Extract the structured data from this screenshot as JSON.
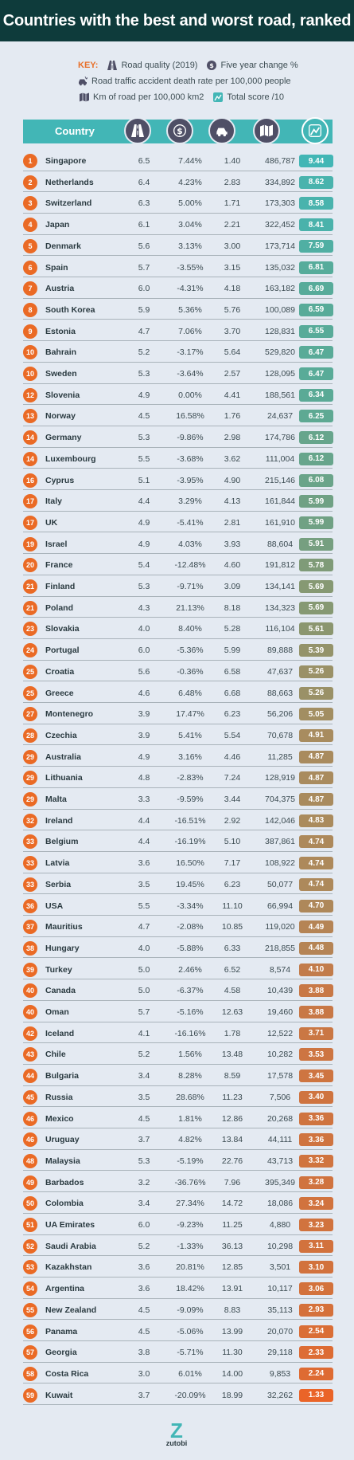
{
  "title": "Countries with the best and worst road, ranked",
  "key": {
    "label": "KEY:",
    "items": [
      {
        "icon": "road-icon",
        "text": "Road quality (2019)"
      },
      {
        "icon": "dollar-icon",
        "text": "Five year change %"
      },
      {
        "icon": "car-crash-icon",
        "text": "Road traffic accident death rate per 100,000 people"
      },
      {
        "icon": "map-icon",
        "text": "Km of road per 100,000 km2"
      },
      {
        "icon": "score-icon",
        "text": "Total score /10"
      }
    ]
  },
  "table_header": {
    "country": "Country"
  },
  "logo": {
    "text": "zutobi"
  },
  "colors": {
    "header_bg": "#0e3b3b",
    "teal": "#42b6b6",
    "rank_orange": "#ea6a25",
    "icon_circle": "#4f4f66"
  },
  "chart_data": {
    "type": "table",
    "title": "Countries with the best and worst road, ranked",
    "columns": [
      "Rank",
      "Country",
      "Road quality (2019)",
      "Five year change %",
      "Road traffic accident death rate per 100,000 people",
      "Km of road per 100,000 km2",
      "Total score /10"
    ],
    "rows": [
      [
        "1",
        "Singapore",
        "6.5",
        "7.44%",
        "1.40",
        "486,787",
        "9.44"
      ],
      [
        "2",
        "Netherlands",
        "6.4",
        "4.23%",
        "2.83",
        "334,892",
        "8.62"
      ],
      [
        "3",
        "Switzerland",
        "6.3",
        "5.00%",
        "1.71",
        "173,303",
        "8.58"
      ],
      [
        "4",
        "Japan",
        "6.1",
        "3.04%",
        "2.21",
        "322,452",
        "8.41"
      ],
      [
        "5",
        "Denmark",
        "5.6",
        "3.13%",
        "3.00",
        "173,714",
        "7.59"
      ],
      [
        "6",
        "Spain",
        "5.7",
        "-3.55%",
        "3.15",
        "135,032",
        "6.81"
      ],
      [
        "7",
        "Austria",
        "6.0",
        "-4.31%",
        "4.18",
        "163,182",
        "6.69"
      ],
      [
        "8",
        "South Korea",
        "5.9",
        "5.36%",
        "5.76",
        "100,089",
        "6.59"
      ],
      [
        "9",
        "Estonia",
        "4.7",
        "7.06%",
        "3.70",
        "128,831",
        "6.55"
      ],
      [
        "10",
        "Bahrain",
        "5.2",
        "-3.17%",
        "5.64",
        "529,820",
        "6.47"
      ],
      [
        "10",
        "Sweden",
        "5.3",
        "-3.64%",
        "2.57",
        "128,095",
        "6.47"
      ],
      [
        "12",
        "Slovenia",
        "4.9",
        "0.00%",
        "4.41",
        "188,561",
        "6.34"
      ],
      [
        "13",
        "Norway",
        "4.5",
        "16.58%",
        "1.76",
        "24,637",
        "6.25"
      ],
      [
        "14",
        "Germany",
        "5.3",
        "-9.86%",
        "2.98",
        "174,786",
        "6.12"
      ],
      [
        "14",
        "Luxembourg",
        "5.5",
        "-3.68%",
        "3.62",
        "111,004",
        "6.12"
      ],
      [
        "16",
        "Cyprus",
        "5.1",
        "-3.95%",
        "4.90",
        "215,146",
        "6.08"
      ],
      [
        "17",
        "Italy",
        "4.4",
        "3.29%",
        "4.13",
        "161,844",
        "5.99"
      ],
      [
        "17",
        "UK",
        "4.9",
        "-5.41%",
        "2.81",
        "161,910",
        "5.99"
      ],
      [
        "19",
        "Israel",
        "4.9",
        "4.03%",
        "3.93",
        "88,604",
        "5.91"
      ],
      [
        "20",
        "France",
        "5.4",
        "-12.48%",
        "4.60",
        "191,812",
        "5.78"
      ],
      [
        "21",
        "Finland",
        "5.3",
        "-9.71%",
        "3.09",
        "134,141",
        "5.69"
      ],
      [
        "21",
        "Poland",
        "4.3",
        "21.13%",
        "8.18",
        "134,323",
        "5.69"
      ],
      [
        "23",
        "Slovakia",
        "4.0",
        "8.40%",
        "5.28",
        "116,104",
        "5.61"
      ],
      [
        "24",
        "Portugal",
        "6.0",
        "-5.36%",
        "5.99",
        "89,888",
        "5.39"
      ],
      [
        "25",
        "Croatia",
        "5.6",
        "-0.36%",
        "6.58",
        "47,637",
        "5.26"
      ],
      [
        "25",
        "Greece",
        "4.6",
        "6.48%",
        "6.68",
        "88,663",
        "5.26"
      ],
      [
        "27",
        "Montenegro",
        "3.9",
        "17.47%",
        "6.23",
        "56,206",
        "5.05"
      ],
      [
        "28",
        "Czechia",
        "3.9",
        "5.41%",
        "5.54",
        "70,678",
        "4.91"
      ],
      [
        "29",
        "Australia",
        "4.9",
        "3.16%",
        "4.46",
        "11,285",
        "4.87"
      ],
      [
        "29",
        "Lithuania",
        "4.8",
        "-2.83%",
        "7.24",
        "128,919",
        "4.87"
      ],
      [
        "29",
        "Malta",
        "3.3",
        "-9.59%",
        "3.44",
        "704,375",
        "4.87"
      ],
      [
        "32",
        "Ireland",
        "4.4",
        "-16.51%",
        "2.92",
        "142,046",
        "4.83"
      ],
      [
        "33",
        "Belgium",
        "4.4",
        "-16.19%",
        "5.10",
        "387,861",
        "4.74"
      ],
      [
        "33",
        "Latvia",
        "3.6",
        "16.50%",
        "7.17",
        "108,922",
        "4.74"
      ],
      [
        "33",
        "Serbia",
        "3.5",
        "19.45%",
        "6.23",
        "50,077",
        "4.74"
      ],
      [
        "36",
        "USA",
        "5.5",
        "-3.34%",
        "11.10",
        "66,994",
        "4.70"
      ],
      [
        "37",
        "Mauritius",
        "4.7",
        "-2.08%",
        "10.85",
        "119,020",
        "4.49"
      ],
      [
        "38",
        "Hungary",
        "4.0",
        "-5.88%",
        "6.33",
        "218,855",
        "4.48"
      ],
      [
        "39",
        "Turkey",
        "5.0",
        "2.46%",
        "6.52",
        "8,574",
        "4.10"
      ],
      [
        "40",
        "Canada",
        "5.0",
        "-6.37%",
        "4.58",
        "10,439",
        "3.88"
      ],
      [
        "40",
        "Oman",
        "5.7",
        "-5.16%",
        "12.63",
        "19,460",
        "3.88"
      ],
      [
        "42",
        "Iceland",
        "4.1",
        "-16.16%",
        "1.78",
        "12,522",
        "3.71"
      ],
      [
        "43",
        "Chile",
        "5.2",
        "1.56%",
        "13.48",
        "10,282",
        "3.53"
      ],
      [
        "44",
        "Bulgaria",
        "3.4",
        "8.28%",
        "8.59",
        "17,578",
        "3.45"
      ],
      [
        "45",
        "Russia",
        "3.5",
        "28.68%",
        "11.23",
        "7,506",
        "3.40"
      ],
      [
        "46",
        "Mexico",
        "4.5",
        "1.81%",
        "12.86",
        "20,268",
        "3.36"
      ],
      [
        "46",
        "Uruguay",
        "3.7",
        "4.82%",
        "13.84",
        "44,111",
        "3.36"
      ],
      [
        "48",
        "Malaysia",
        "5.3",
        "-5.19%",
        "22.76",
        "43,713",
        "3.32"
      ],
      [
        "49",
        "Barbados",
        "3.2",
        "-36.76%",
        "7.96",
        "395,349",
        "3.28"
      ],
      [
        "50",
        "Colombia",
        "3.4",
        "27.34%",
        "14.72",
        "18,086",
        "3.24"
      ],
      [
        "51",
        "UA Emirates",
        "6.0",
        "-9.23%",
        "11.25",
        "4,880",
        "3.23"
      ],
      [
        "52",
        "Saudi Arabia",
        "5.2",
        "-1.33%",
        "36.13",
        "10,298",
        "3.11"
      ],
      [
        "53",
        "Kazakhstan",
        "3.6",
        "20.81%",
        "12.85",
        "3,501",
        "3.10"
      ],
      [
        "54",
        "Argentina",
        "3.6",
        "18.42%",
        "13.91",
        "10,117",
        "3.06"
      ],
      [
        "55",
        "New Zealand",
        "4.5",
        "-9.09%",
        "8.83",
        "35,113",
        "2.93"
      ],
      [
        "56",
        "Panama",
        "4.5",
        "-5.06%",
        "13.99",
        "20,070",
        "2.54"
      ],
      [
        "57",
        "Georgia",
        "3.8",
        "-5.71%",
        "11.30",
        "29,118",
        "2.33"
      ],
      [
        "58",
        "Costa Rica",
        "3.0",
        "6.01%",
        "14.00",
        "9,853",
        "2.24"
      ],
      [
        "59",
        "Kuwait",
        "3.7",
        "-20.09%",
        "18.99",
        "32,262",
        "1.33"
      ]
    ]
  }
}
